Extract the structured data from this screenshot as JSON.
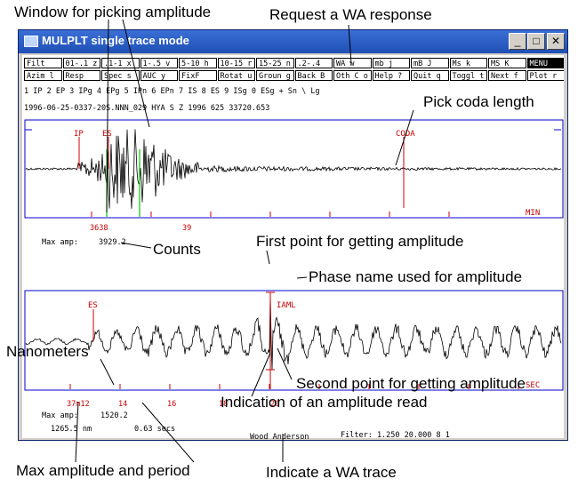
{
  "annotations": {
    "window_for_picking": "Window for picking amplitude",
    "request_wa": "Request a WA response",
    "pick_coda": "Pick coda length",
    "counts": "Counts",
    "first_point": "First point for getting amplitude",
    "phase_name": "Phase name used for amplitude",
    "nanometers": "Nanometers",
    "second_point": "Second point for getting amplitude",
    "indication_amp": "Indication of an amplitude read",
    "max_amp_period": "Max amplitude and period",
    "indicate_wa": "Indicate a WA trace"
  },
  "window": {
    "title": "MULPLT single trace mode"
  },
  "menu_row1": [
    "Filt",
    "01-.1  z",
    ".1-1  x",
    "1-.5  v",
    "5-10  h",
    "10-15  r",
    "15-25  n",
    ".2-.4",
    "WA  w",
    "mb  j",
    "mB  J",
    "Ms  k",
    "MS  K",
    "MENU"
  ],
  "menu_row2": [
    "Azim  l",
    "Resp",
    "Spec  s",
    "AUC  y",
    "FixF",
    "Rotat  u",
    "Groun  g",
    "Back  B",
    "Oth C  o",
    "Help  ?",
    "Quit  q",
    "Toggl  t",
    "Next  f",
    "Plot  r"
  ],
  "phase_line": "1 IP  2 EP  3 IPg 4 EPg 5 IPn 6 EPn 7 IS  8 ES  9 ISg 0 ESg + Sn  \\  Lg",
  "header_line": "1996-06-25-0337-20S.NNN_029          HYA   S  Z   1996 625 33720.653",
  "top_trace": {
    "phase_ip": "IP",
    "phase_es": "ES",
    "phase_coda": "CODA",
    "axis_min": "MIN",
    "tick_first": "3638",
    "tick_second": "39",
    "max_amp_label": "Max amp:",
    "max_amp_value": "3929.2"
  },
  "bottom_trace": {
    "phase_es": "ES",
    "phase_iaml": "IAML",
    "axis_sec": "SEC",
    "tick_labels": [
      "37m12",
      "14",
      "16",
      "18",
      "20"
    ],
    "max_amp_label": "Max amp:",
    "max_amp_value": "1520.2",
    "amplitude": "1265.5 nm",
    "period": "0.63 secs",
    "wa_label": "Wood Anderson",
    "filter_text": "Filter:   1.250  20.000    8  1"
  },
  "colors": {
    "title_bar": "#1f4fb5",
    "phase_marker": "#cc0000",
    "window_marker": "#00cc00",
    "frame": "#0000cc"
  }
}
